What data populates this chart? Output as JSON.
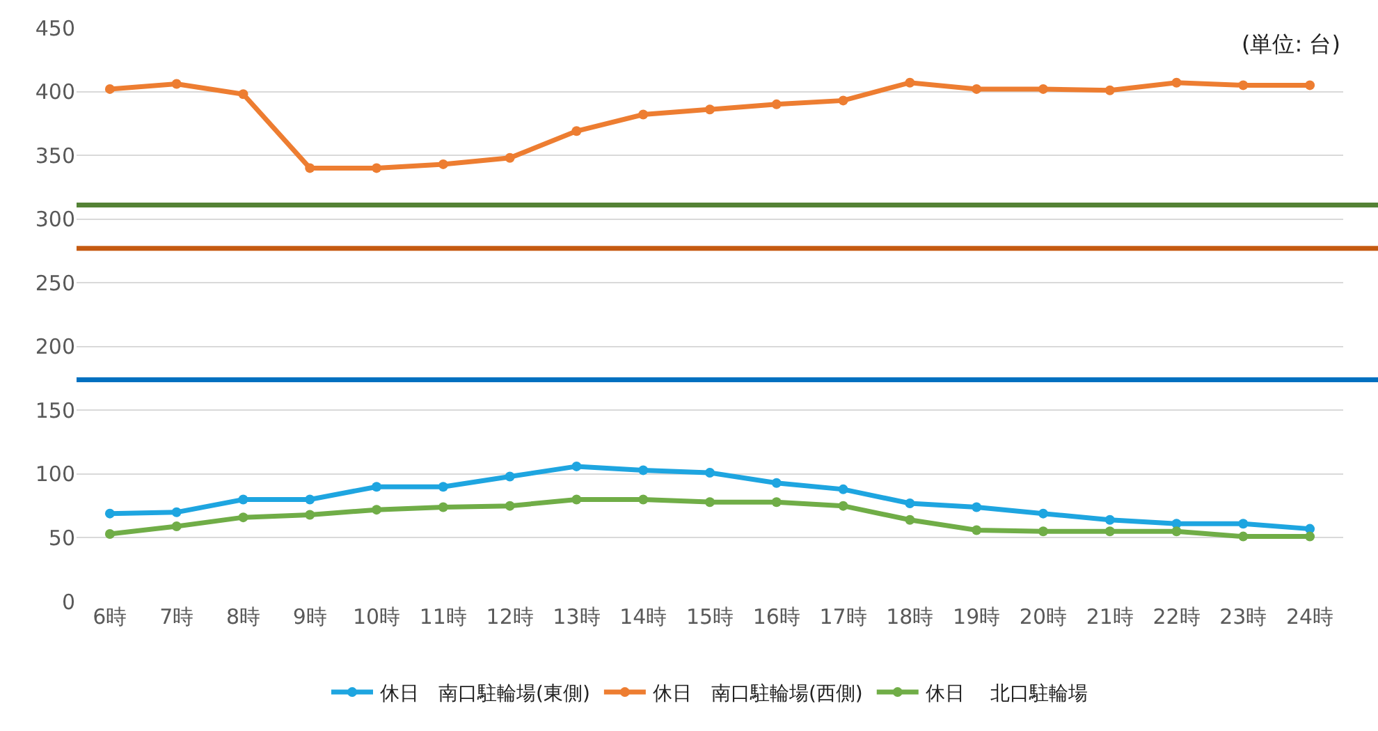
{
  "chart_data": {
    "type": "line",
    "categories": [
      "6時",
      "7時",
      "8時",
      "9時",
      "10時",
      "11時",
      "12時",
      "13時",
      "14時",
      "15時",
      "16時",
      "17時",
      "18時",
      "19時",
      "20時",
      "21時",
      "22時",
      "23時",
      "24時"
    ],
    "series": [
      {
        "name": "休日　南口駐輪場(東側)",
        "color": "#1ea5e0",
        "values": [
          69,
          70,
          80,
          80,
          90,
          90,
          98,
          106,
          103,
          101,
          93,
          88,
          77,
          74,
          69,
          64,
          61,
          61,
          57
        ]
      },
      {
        "name": "休日　南口駐輪場(西側)",
        "color": "#ed7d31",
        "values": [
          402,
          406,
          398,
          340,
          340,
          343,
          348,
          369,
          382,
          386,
          390,
          393,
          407,
          402,
          402,
          401,
          407,
          405,
          405
        ]
      },
      {
        "name": "休日　 北口駐輪場",
        "color": "#70ad47",
        "values": [
          53,
          59,
          66,
          68,
          72,
          74,
          75,
          80,
          80,
          78,
          78,
          75,
          64,
          56,
          55,
          55,
          55,
          51,
          51
        ]
      }
    ],
    "ref_lines": [
      {
        "axis": "y",
        "value": 311,
        "label": null,
        "color": "#548235"
      },
      {
        "axis": "y",
        "value": 277,
        "label": null,
        "color": "#c55a11"
      },
      {
        "axis": "y",
        "value": 174,
        "label": null,
        "color": "#0070c0"
      }
    ],
    "annotations": [
      "(単位: 台)"
    ],
    "ylim": [
      0,
      450
    ],
    "yticks": [
      0,
      50,
      100,
      150,
      200,
      250,
      300,
      350,
      400,
      450
    ],
    "grid": "y",
    "legend": "bottom",
    "marker": "circle",
    "line_style": "solid"
  }
}
